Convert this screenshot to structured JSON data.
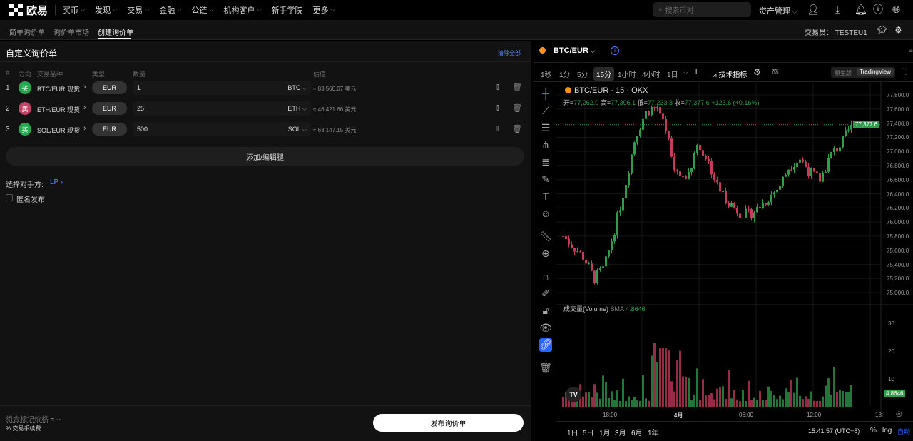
{
  "topnav": {
    "brand": "欧易",
    "items": [
      {
        "label": "买币",
        "dropdown": true
      },
      {
        "label": "发现",
        "dropdown": true
      },
      {
        "label": "交易",
        "dropdown": true
      },
      {
        "label": "金融",
        "dropdown": true
      },
      {
        "label": "公链",
        "dropdown": true
      },
      {
        "label": "机构客户",
        "dropdown": true
      },
      {
        "label": "新手学院",
        "dropdown": false
      },
      {
        "label": "更多",
        "dropdown": true
      }
    ],
    "search_placeholder": "搜索币对",
    "assets": "资产管理"
  },
  "subnav": {
    "tabs": [
      "简单询价单",
      "询价单市场",
      "创建询价单"
    ],
    "active": 2,
    "trader_label": "交易员：",
    "trader": "TESTEU1"
  },
  "form": {
    "title": "自定义询价单",
    "clear_all": "清除全部",
    "headers": {
      "num": "#",
      "side": "方向",
      "instrument": "交易品种",
      "type": "类型",
      "qty": "数量",
      "est": "估值"
    },
    "legs": [
      {
        "num": "1",
        "side": "买",
        "side_color": "#25a750",
        "instrument": "BTC/EUR 现货",
        "type": "EUR",
        "qty": "1",
        "unit": "BTC",
        "est": "≈ 83,560.07 美元"
      },
      {
        "num": "2",
        "side": "卖",
        "side_color": "#ca3f64",
        "instrument": "ETH/EUR 现货",
        "type": "EUR",
        "qty": "25",
        "unit": "ETH",
        "est": "≈ 46,421.66 美元"
      },
      {
        "num": "3",
        "side": "买",
        "side_color": "#25a750",
        "instrument": "SOL/EUR 现货",
        "type": "EUR",
        "qty": "500",
        "unit": "SOL",
        "est": "≈ 63,147.15 美元"
      }
    ],
    "add_legs": "添加/编辑腿",
    "counterparty_label": "选择对手方:",
    "counterparty": "LP",
    "anonymous": "匿名发布",
    "anonymous_checked": false,
    "mark_price_label": "组合标记价格",
    "mark_price": "≈ --",
    "fee": "交易手续费",
    "submit": "发布询价单"
  },
  "chart": {
    "pair": "BTC/EUR",
    "timeframes": [
      "1秒",
      "1分",
      "5分",
      "15分",
      "1小时",
      "4小时",
      "1日"
    ],
    "active_tf": "15分",
    "indicators": "技术指标",
    "modes": [
      "原生版",
      "TradingView"
    ],
    "active_mode": "TradingView",
    "legend": "BTC/EUR · 15 · OKX",
    "ohlc": {
      "o_label": "开=",
      "o": "77,262.0",
      "h_label": "高=",
      "h": "77,396.1",
      "l_label": "低=",
      "l": "77,233.3",
      "c_label": "收=",
      "c": "77,377.6",
      "chg": "+123.6 (+0.16%)"
    },
    "price_ticks": [
      "77,800.0",
      "77,600.0",
      "77,400.0",
      "77,200.0",
      "77,000.0",
      "76,800.0",
      "76,600.0",
      "76,400.0",
      "76,200.0",
      "76,000.0",
      "75,800.0",
      "75,600.0",
      "75,400.0",
      "75,200.0",
      "75,000.0"
    ],
    "last_price": "77,377.6",
    "volume_label": "成交量(Volume)",
    "volume_sma": "SMA",
    "volume_value": "4.8646",
    "volume_ticks": [
      "30",
      "20",
      "10"
    ],
    "time_ticks": [
      "18:00",
      "4月",
      "06:00",
      "12:00",
      "18:"
    ],
    "ranges": [
      "1日",
      "5日",
      "1月",
      "3月",
      "6月",
      "1年"
    ],
    "clock": "15:41:57 (UTC+8)",
    "pct": "%",
    "log": "log",
    "auto": "自动",
    "up_color": "#2e9e4a",
    "down_color": "#c73a5d"
  },
  "chart_data": {
    "type": "candlestick",
    "ylim": [
      75000,
      77800
    ],
    "price_path": [
      75800,
      75650,
      75500,
      75200,
      75350,
      75900,
      76500,
      77200,
      77550,
      77650,
      77300,
      76700,
      76600,
      77100,
      76900,
      76500,
      76300,
      76150,
      76100,
      76200,
      76350,
      76500,
      76800,
      76900,
      76700,
      76600,
      76950,
      77100,
      77377.6
    ]
  }
}
